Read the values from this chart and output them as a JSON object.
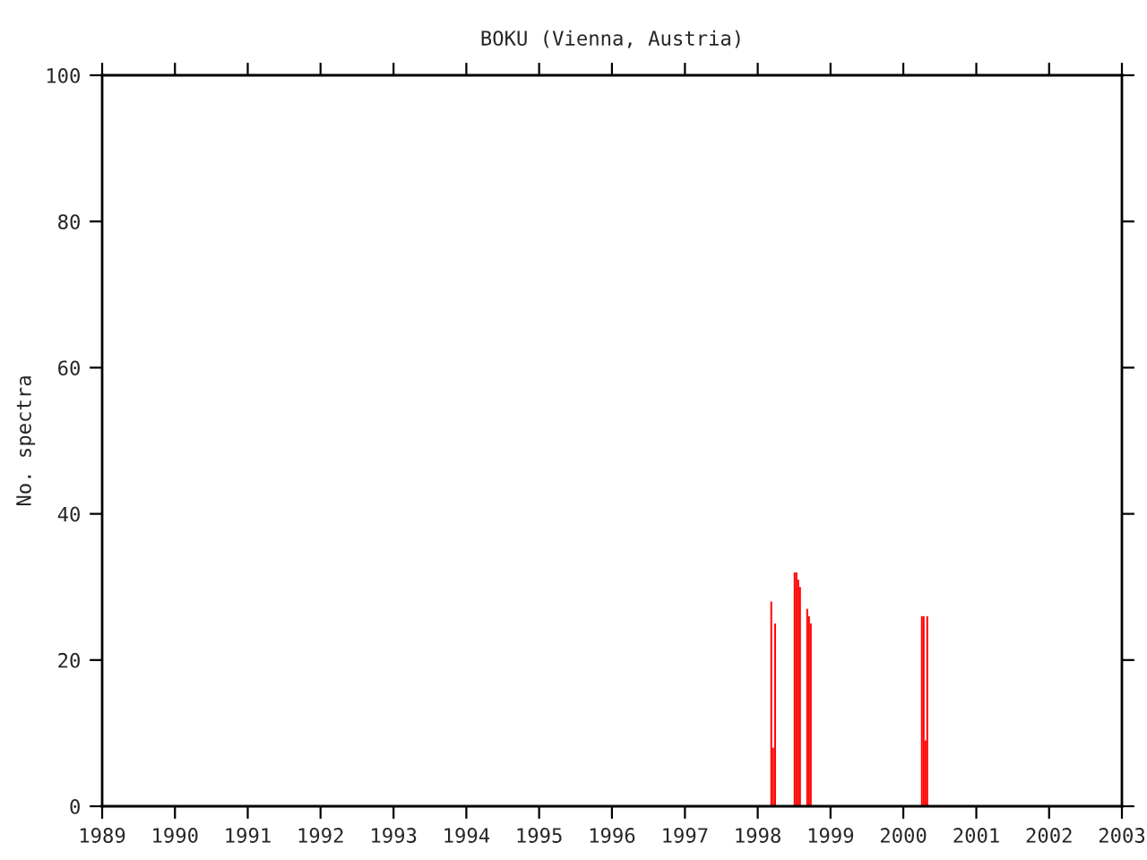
{
  "chart_data": {
    "type": "bar",
    "title": "BOKU (Vienna, Austria)",
    "ylabel": "No. spectra",
    "x": [
      "1998-03-10",
      "1998-03-19",
      "1998-03-29",
      "1998-07-05",
      "1998-07-14",
      "1998-07-23",
      "1998-08-01",
      "1998-09-06",
      "1998-09-15",
      "1998-09-24",
      "2000-04-03",
      "2000-04-12",
      "2000-04-21",
      "2000-04-30"
    ],
    "series": [
      {
        "color": "#ff0000",
        "values": [
          28,
          8,
          25,
          32,
          32,
          31,
          30,
          27,
          26,
          25,
          26,
          26,
          9,
          26
        ]
      }
    ],
    "xlim": [
      "1989",
      "2003"
    ],
    "xticks": [
      "1989",
      "1990",
      "1991",
      "1992",
      "1993",
      "1994",
      "1995",
      "1996",
      "1997",
      "1998",
      "1999",
      "2000",
      "2001",
      "2002",
      "2003"
    ],
    "ylim": [
      0,
      100
    ],
    "yticks": [
      0,
      20,
      40,
      60,
      80,
      100
    ],
    "grid": false,
    "legend": false
  }
}
